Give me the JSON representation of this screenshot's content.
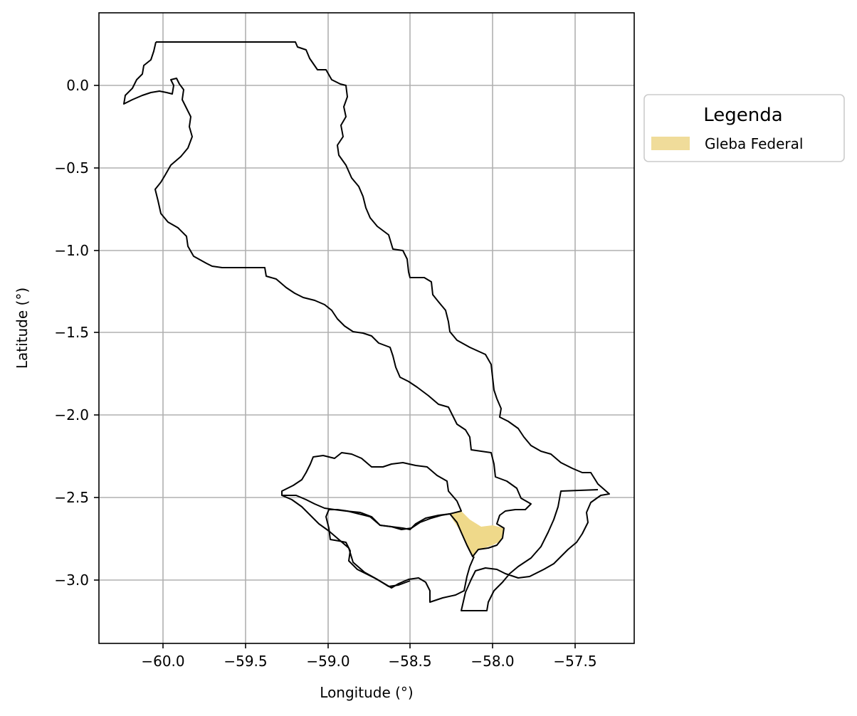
{
  "map": {
    "xlabel": "Longitude (°)",
    "ylabel": "Latitude (°)",
    "x_ticks": [
      "−60.0",
      "−59.5",
      "−59.0",
      "−58.5",
      "−58.0",
      "−57.5"
    ],
    "y_ticks": [
      "0.0",
      "−0.5",
      "−1.0",
      "−1.5",
      "−2.0",
      "−2.5",
      "−3.0"
    ],
    "x_range": [
      -60.4,
      -57.15
    ],
    "y_range": [
      -3.38,
      0.44
    ],
    "grid": true,
    "legend": {
      "title": "Legenda",
      "placement": "outside upper right",
      "items": [
        {
          "label": "Gleba Federal",
          "color": "#f0dc9a"
        }
      ]
    },
    "colors": {
      "boundary": "#000000",
      "gleba_federal": "#efd98a",
      "grid": "#b0b0b0"
    }
  }
}
